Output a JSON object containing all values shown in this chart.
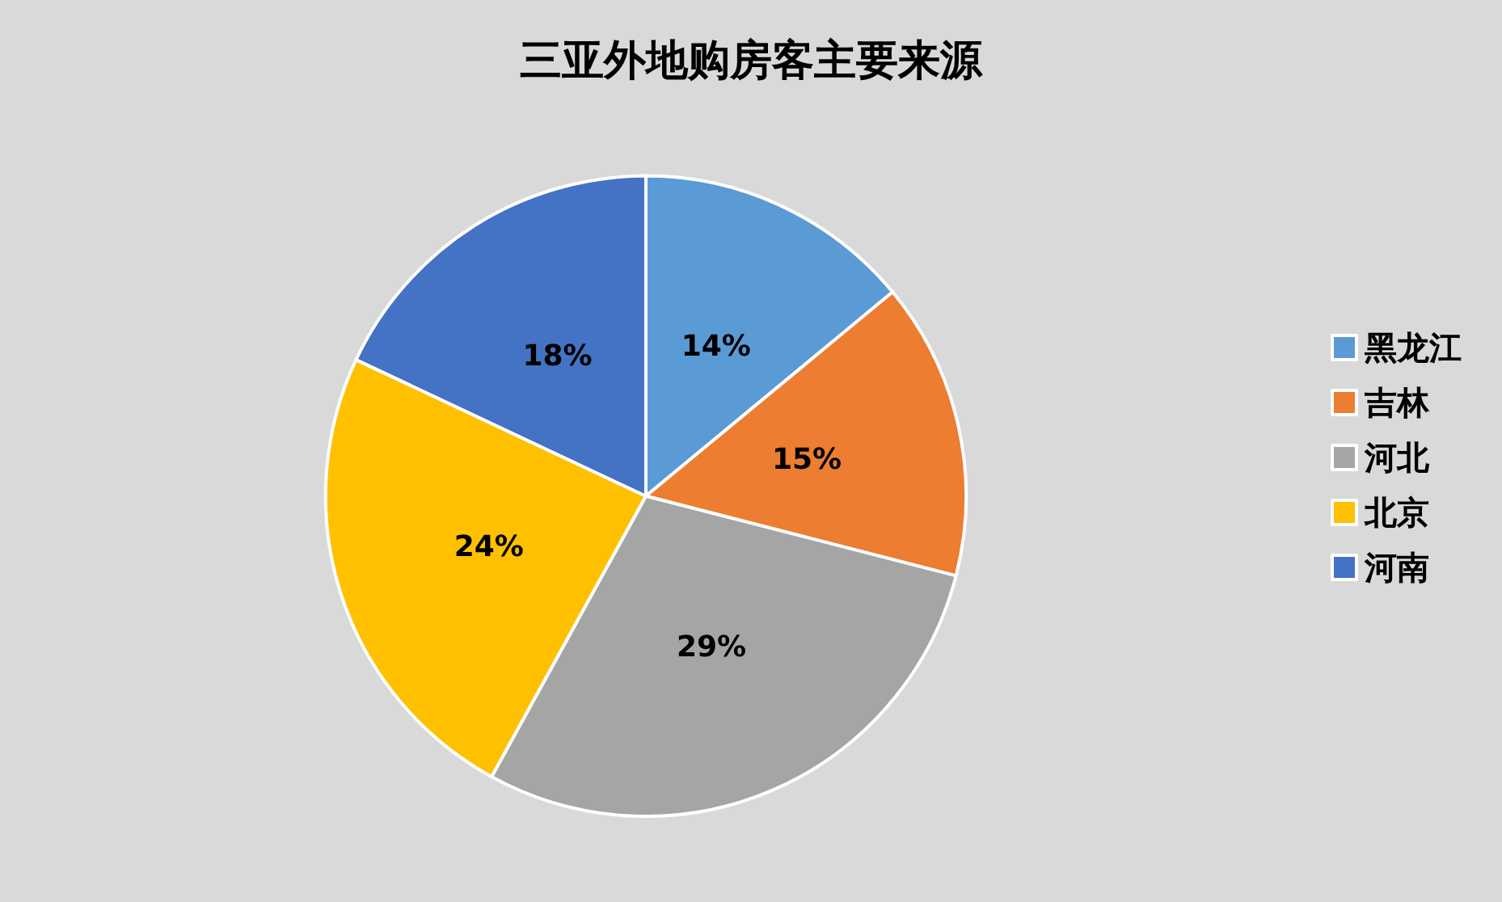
{
  "chart_data": {
    "type": "pie",
    "title": "三亚外地购房客主要来源",
    "categories": [
      "黑龙江",
      "吉林",
      "河北",
      "北京",
      "河南"
    ],
    "values": [
      14,
      15,
      29,
      24,
      18
    ],
    "value_labels": [
      "14%",
      "15%",
      "29%",
      "24%",
      "18%"
    ],
    "colors": [
      "#5b9bd5",
      "#ed7d31",
      "#a5a5a5",
      "#ffc000",
      "#4472c4"
    ],
    "legend": "right"
  }
}
